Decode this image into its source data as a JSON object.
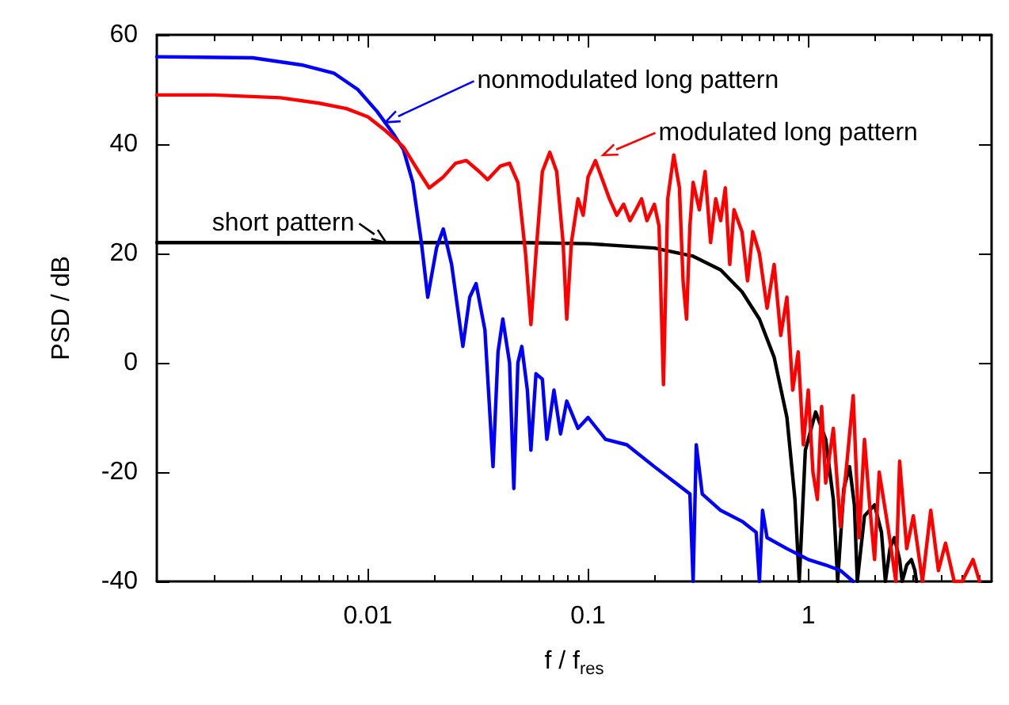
{
  "chart_data": {
    "type": "line",
    "xlabel": "f / f$_{res}$",
    "ylabel": "PSD / dB",
    "log": "x",
    "xlim": [
      0.0011,
      6.8
    ],
    "xticks": [
      0.01,
      0.1,
      1
    ],
    "ylim": [
      -40,
      60
    ],
    "yticks": [
      -40,
      -20,
      0,
      20,
      40,
      60
    ],
    "grid": false,
    "marker": "none",
    "line_style": "solid",
    "series": [
      {
        "color": "#ff0000",
        "x": [
          0.0011,
          0.002,
          0.004,
          0.006,
          0.008,
          0.01,
          0.012,
          0.0145,
          0.017,
          0.019,
          0.022,
          0.025,
          0.028,
          0.032,
          0.035,
          0.04,
          0.044,
          0.048,
          0.052,
          0.055,
          0.058,
          0.062,
          0.067,
          0.072,
          0.077,
          0.08,
          0.084,
          0.09,
          0.095,
          0.1,
          0.108,
          0.115,
          0.125,
          0.135,
          0.145,
          0.155,
          0.165,
          0.175,
          0.185,
          0.2,
          0.21,
          0.22,
          0.23,
          0.245,
          0.26,
          0.27,
          0.28,
          0.29,
          0.3,
          0.32,
          0.34,
          0.36,
          0.38,
          0.4,
          0.42,
          0.44,
          0.46,
          0.5,
          0.53,
          0.56,
          0.6,
          0.65,
          0.7,
          0.75,
          0.8,
          0.85,
          0.9,
          0.95,
          1.0,
          1.05,
          1.1,
          1.15,
          1.2,
          1.3,
          1.4,
          1.5,
          1.6,
          1.7,
          1.8,
          1.9,
          2.0,
          2.1,
          2.3,
          2.5,
          2.6,
          2.8,
          3.0,
          3.3,
          3.6,
          3.9,
          4.2,
          4.6,
          5.0,
          5.6,
          6.0
        ],
        "values": [
          49,
          49,
          48.5,
          47.5,
          46.5,
          45,
          42.5,
          39.5,
          35,
          32,
          34,
          36.5,
          37,
          35,
          33.5,
          36,
          36.5,
          33,
          20,
          7,
          20,
          35,
          38.5,
          35,
          22,
          8,
          22,
          30,
          27,
          34,
          37,
          34,
          30,
          27,
          29,
          26,
          28,
          30,
          26,
          29,
          25,
          -4,
          30,
          38,
          32,
          15,
          8,
          25,
          33,
          28,
          35,
          22,
          30,
          26,
          32,
          18,
          28,
          24,
          15,
          24,
          20,
          10,
          18,
          5,
          12,
          -5,
          2,
          -15,
          -5,
          -20,
          -25,
          -8,
          -22,
          -12,
          -30,
          -18,
          -6,
          -32,
          -14,
          -26,
          -36,
          -20,
          -30,
          -40,
          -18,
          -34,
          -28,
          -40,
          -27,
          -38,
          -33,
          -40,
          -40,
          -36,
          -40
        ]
      },
      {
        "color": "#0000ff",
        "x": [
          0.0011,
          0.003,
          0.005,
          0.007,
          0.009,
          0.011,
          0.013,
          0.0145,
          0.016,
          0.0175,
          0.0187,
          0.0205,
          0.022,
          0.024,
          0.027,
          0.029,
          0.031,
          0.034,
          0.037,
          0.039,
          0.041,
          0.044,
          0.046,
          0.048,
          0.05,
          0.053,
          0.055,
          0.058,
          0.062,
          0.065,
          0.07,
          0.075,
          0.08,
          0.09,
          0.1,
          0.12,
          0.15,
          0.2,
          0.25,
          0.29,
          0.3,
          0.31,
          0.33,
          0.4,
          0.5,
          0.58,
          0.6,
          0.62,
          0.65,
          0.8,
          1.0,
          1.2,
          1.4,
          1.6
        ],
        "values": [
          56,
          55.8,
          54.5,
          53,
          50,
          46,
          42,
          39,
          33,
          22,
          12,
          21,
          24.5,
          18,
          3,
          12,
          14.5,
          6,
          -19,
          2,
          8,
          0,
          -23,
          0,
          3,
          -5,
          -16,
          -2,
          -3,
          -14,
          -5,
          -13,
          -7,
          -12,
          -10,
          -14,
          -15,
          -19,
          -22,
          -24,
          -40,
          -15,
          -24,
          -27,
          -29,
          -31,
          -40,
          -27,
          -32,
          -34,
          -36,
          -37,
          -38,
          -40
        ]
      },
      {
        "color": "#000000",
        "x": [
          0.0011,
          0.05,
          0.1,
          0.2,
          0.3,
          0.4,
          0.5,
          0.6,
          0.7,
          0.8,
          0.87,
          0.91,
          0.97,
          1.08,
          1.2,
          1.3,
          1.36,
          1.45,
          1.54,
          1.62,
          1.67,
          1.8,
          2.0,
          2.15,
          2.24,
          2.35,
          2.46,
          2.6,
          2.67,
          2.8,
          2.94,
          3.05,
          3.1
        ],
        "values": [
          22,
          22,
          21.8,
          21,
          19.5,
          17,
          13,
          8,
          1,
          -10,
          -25,
          -40,
          -16,
          -9,
          -14,
          -25,
          -40,
          -23,
          -19,
          -26,
          -40,
          -28,
          -26,
          -31,
          -40,
          -34,
          -32,
          -36,
          -40,
          -37,
          -36,
          -38,
          -40
        ]
      }
    ],
    "annotations": [
      {
        "text": "nonmodulated long pattern",
        "x": 0.012,
        "y": 44
      },
      {
        "text": "modulated long pattern",
        "x": 0.117,
        "y": 38
      },
      {
        "text": "short pattern",
        "x": 0.0121,
        "y": 22
      }
    ]
  }
}
